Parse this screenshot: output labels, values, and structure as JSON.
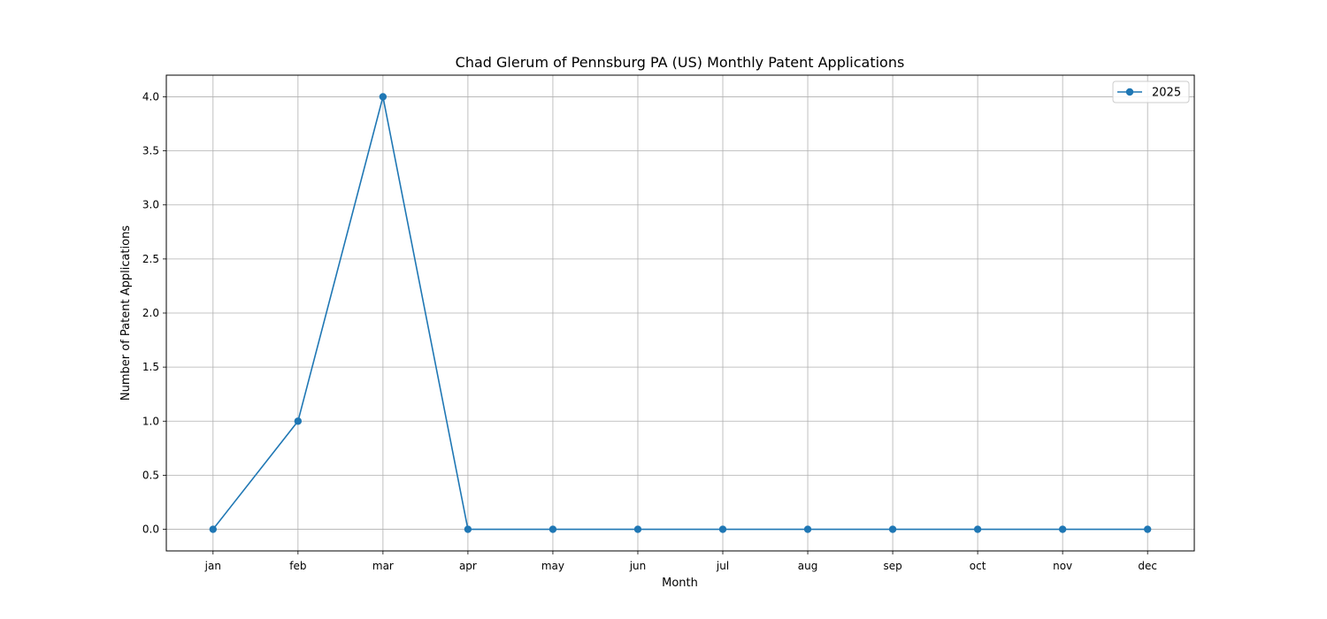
{
  "chart_data": {
    "type": "line",
    "title": "Chad Glerum of Pennsburg PA (US) Monthly Patent Applications",
    "xlabel": "Month",
    "ylabel": "Number of Patent Applications",
    "categories": [
      "jan",
      "feb",
      "mar",
      "apr",
      "may",
      "jun",
      "jul",
      "aug",
      "sep",
      "oct",
      "nov",
      "dec"
    ],
    "series": [
      {
        "name": "2025",
        "values": [
          0,
          1,
          4,
          0,
          0,
          0,
          0,
          0,
          0,
          0,
          0,
          0
        ],
        "color": "#1f77b4"
      }
    ],
    "ylim": [
      -0.2,
      4.2
    ],
    "yticks": [
      0.0,
      0.5,
      1.0,
      1.5,
      2.0,
      2.5,
      3.0,
      3.5,
      4.0
    ],
    "ytick_labels": [
      "0.0",
      "0.5",
      "1.0",
      "1.5",
      "2.0",
      "2.5",
      "3.0",
      "3.5",
      "4.0"
    ],
    "grid": true,
    "legend_position": "top-right"
  }
}
